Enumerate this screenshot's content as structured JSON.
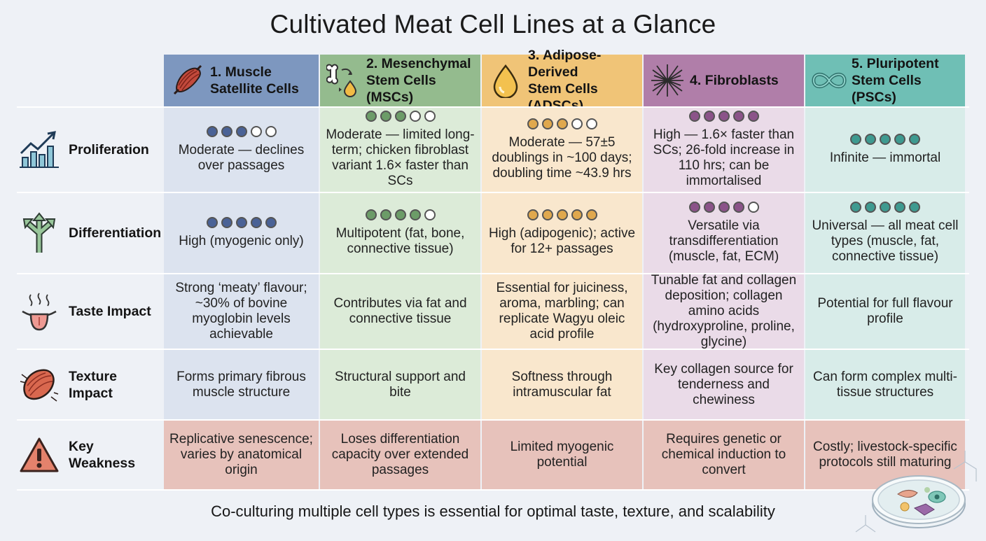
{
  "title": "Cultivated Meat Cell Lines at a Glance",
  "footer": "Co-culturing multiple cell types is essential for optimal taste, texture, and scalability",
  "columns": [
    {
      "line1": "1. Muscle",
      "line2": "Satellite Cells",
      "icon": "muscle-icon",
      "head_color": "#7d97bf",
      "body_color": "#dce3ef",
      "dot_color": "#4a6296"
    },
    {
      "line1": "2. Mesenchymal",
      "line2": "Stem Cells (MSCs)",
      "icon": "bone-fat-icon",
      "head_color": "#94bb8e",
      "body_color": "#dcebd8",
      "dot_color": "#6c9c68"
    },
    {
      "line1": "3. Adipose-Derived",
      "line2": "Stem Cells (ADSCs)",
      "icon": "fat-droplet-icon",
      "head_color": "#f0c477",
      "body_color": "#f9e7cd",
      "dot_color": "#e0a84d"
    },
    {
      "line1": "4. Fibroblasts",
      "line2": "",
      "icon": "fiber-network-icon",
      "head_color": "#b07ea9",
      "body_color": "#eadbe8",
      "dot_color": "#8b5389"
    },
    {
      "line1": "5. Pluripotent",
      "line2": "Stem Cells (PSCs)",
      "icon": "infinity-icon",
      "head_color": "#6fbfb5",
      "body_color": "#d8ece9",
      "dot_color": "#3e9a90"
    }
  ],
  "rows": [
    {
      "label": "Proliferation",
      "icon": "growth-chart-icon",
      "ratings": [
        3,
        3,
        3,
        5,
        5
      ],
      "cells": [
        "Moderate — declines over passages",
        "Moderate — limited long-term; chicken fibroblast variant 1.6× faster than SCs",
        "Moderate — 57±5 doublings in ~100 days; doubling time ~43.9 hrs",
        "High — 1.6× faster than SCs; 26-fold increase in 110 hrs; can be immortalised",
        "Infinite — immortal"
      ]
    },
    {
      "label": "Differentiation",
      "icon": "branching-arrows-icon",
      "ratings": [
        5,
        4,
        5,
        4,
        5
      ],
      "cells": [
        "High (myogenic only)",
        "Multipotent (fat, bone, connective tissue)",
        "High (adipogenic); active for 12+ passages",
        "Versatile via transdifferentiation (muscle, fat, ECM)",
        "Universal — all meat cell types (muscle, fat, connective tissue)"
      ]
    },
    {
      "label": "Taste Impact",
      "icon": "tongue-icon",
      "cells": [
        "Strong ‘meaty’ flavour; ~30% of bovine myoglobin levels achievable",
        "Contributes via fat and connective tissue",
        "Essential for juiciness, aroma, marbling; can replicate Wagyu oleic acid profile",
        "Tunable fat and collagen deposition; collagen amino acids (hydroxyproline, proline, glycine)",
        "Potential for full flavour profile"
      ]
    },
    {
      "label": "Texture Impact",
      "label_line1": "Texture",
      "label_line2": "Impact",
      "icon": "meat-fiber-icon",
      "cells": [
        "Forms primary fibrous muscle structure",
        "Structural support and bite",
        "Softness through intramuscular fat",
        "Key collagen source for tenderness and chewiness",
        "Can form complex multi-tissue structures"
      ]
    },
    {
      "label": "Key Weakness",
      "label_line1": "Key",
      "label_line2": "Weakness",
      "icon": "warning-icon",
      "cells": [
        "Replicative senescence; varies by anatomical origin",
        "Loses differentiation capacity over extended passages",
        "Limited myogenic potential",
        "Requires genetic or chemical induction to convert",
        "Costly; livestock-specific protocols still maturing"
      ]
    }
  ],
  "weakness_color": "#e7c2bb",
  "decoration": "petri-dish-icon"
}
